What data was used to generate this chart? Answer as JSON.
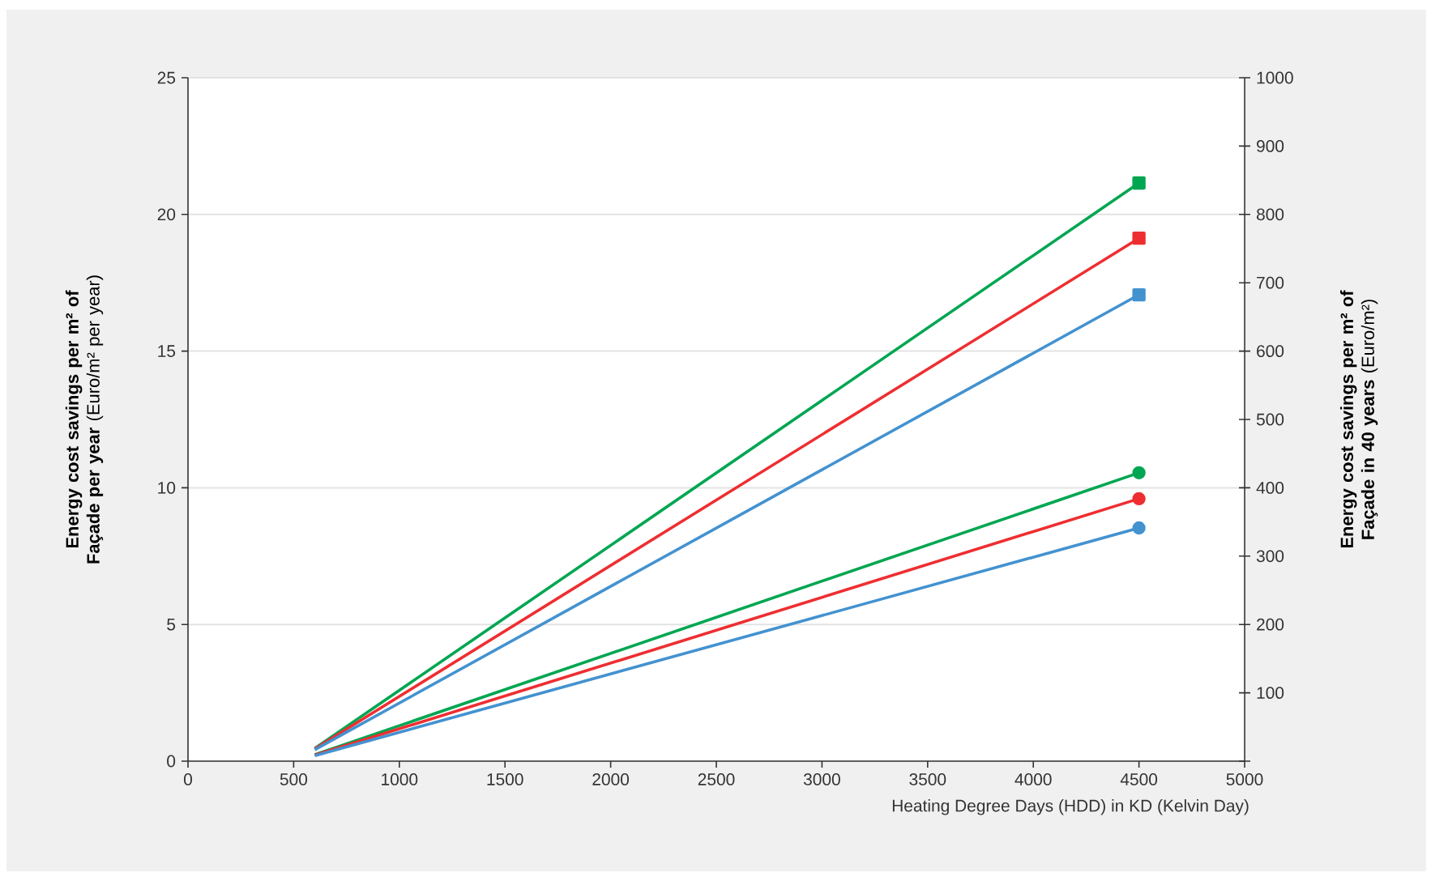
{
  "chart_data": {
    "type": "line",
    "xlabel": "Heating Degree Days (HDD) in KD (Kelvin Day)",
    "ylabel": "**Energy cost savings per m² of Façade per year** (Euro/m² per year)",
    "y2label": "**Energy cost savings per m² of Façade in 40 years** (Euro/m²)",
    "x": [
      600,
      4500
    ],
    "series": [
      {
        "color": "#00a651",
        "marker": "square",
        "values": [
          0.47,
          21.15
        ]
      },
      {
        "color": "#ee2e31",
        "marker": "square",
        "values": [
          0.45,
          19.13
        ]
      },
      {
        "color": "#4392d0",
        "marker": "square",
        "values": [
          0.42,
          17.06
        ]
      },
      {
        "color": "#00a651",
        "marker": "circle",
        "values": [
          0.24,
          10.55
        ]
      },
      {
        "color": "#ee2e31",
        "marker": "circle",
        "values": [
          0.22,
          9.6
        ]
      },
      {
        "color": "#4392d0",
        "marker": "circle",
        "values": [
          0.2,
          8.53
        ]
      }
    ],
    "xlim": [
      0,
      5000
    ],
    "xticks": [
      0,
      500,
      1000,
      1500,
      2000,
      2500,
      3000,
      3500,
      4000,
      4500,
      5000
    ],
    "ylim": [
      0,
      25
    ],
    "yticks": [
      0,
      5,
      10,
      15,
      20,
      25
    ],
    "y2lim": [
      0,
      1000
    ],
    "y2ticks": [
      {
        "value": 0,
        "label": null
      },
      100,
      200,
      300,
      400,
      500,
      600,
      700,
      800,
      900,
      1000
    ],
    "grid": "y",
    "line_style": "solid"
  }
}
